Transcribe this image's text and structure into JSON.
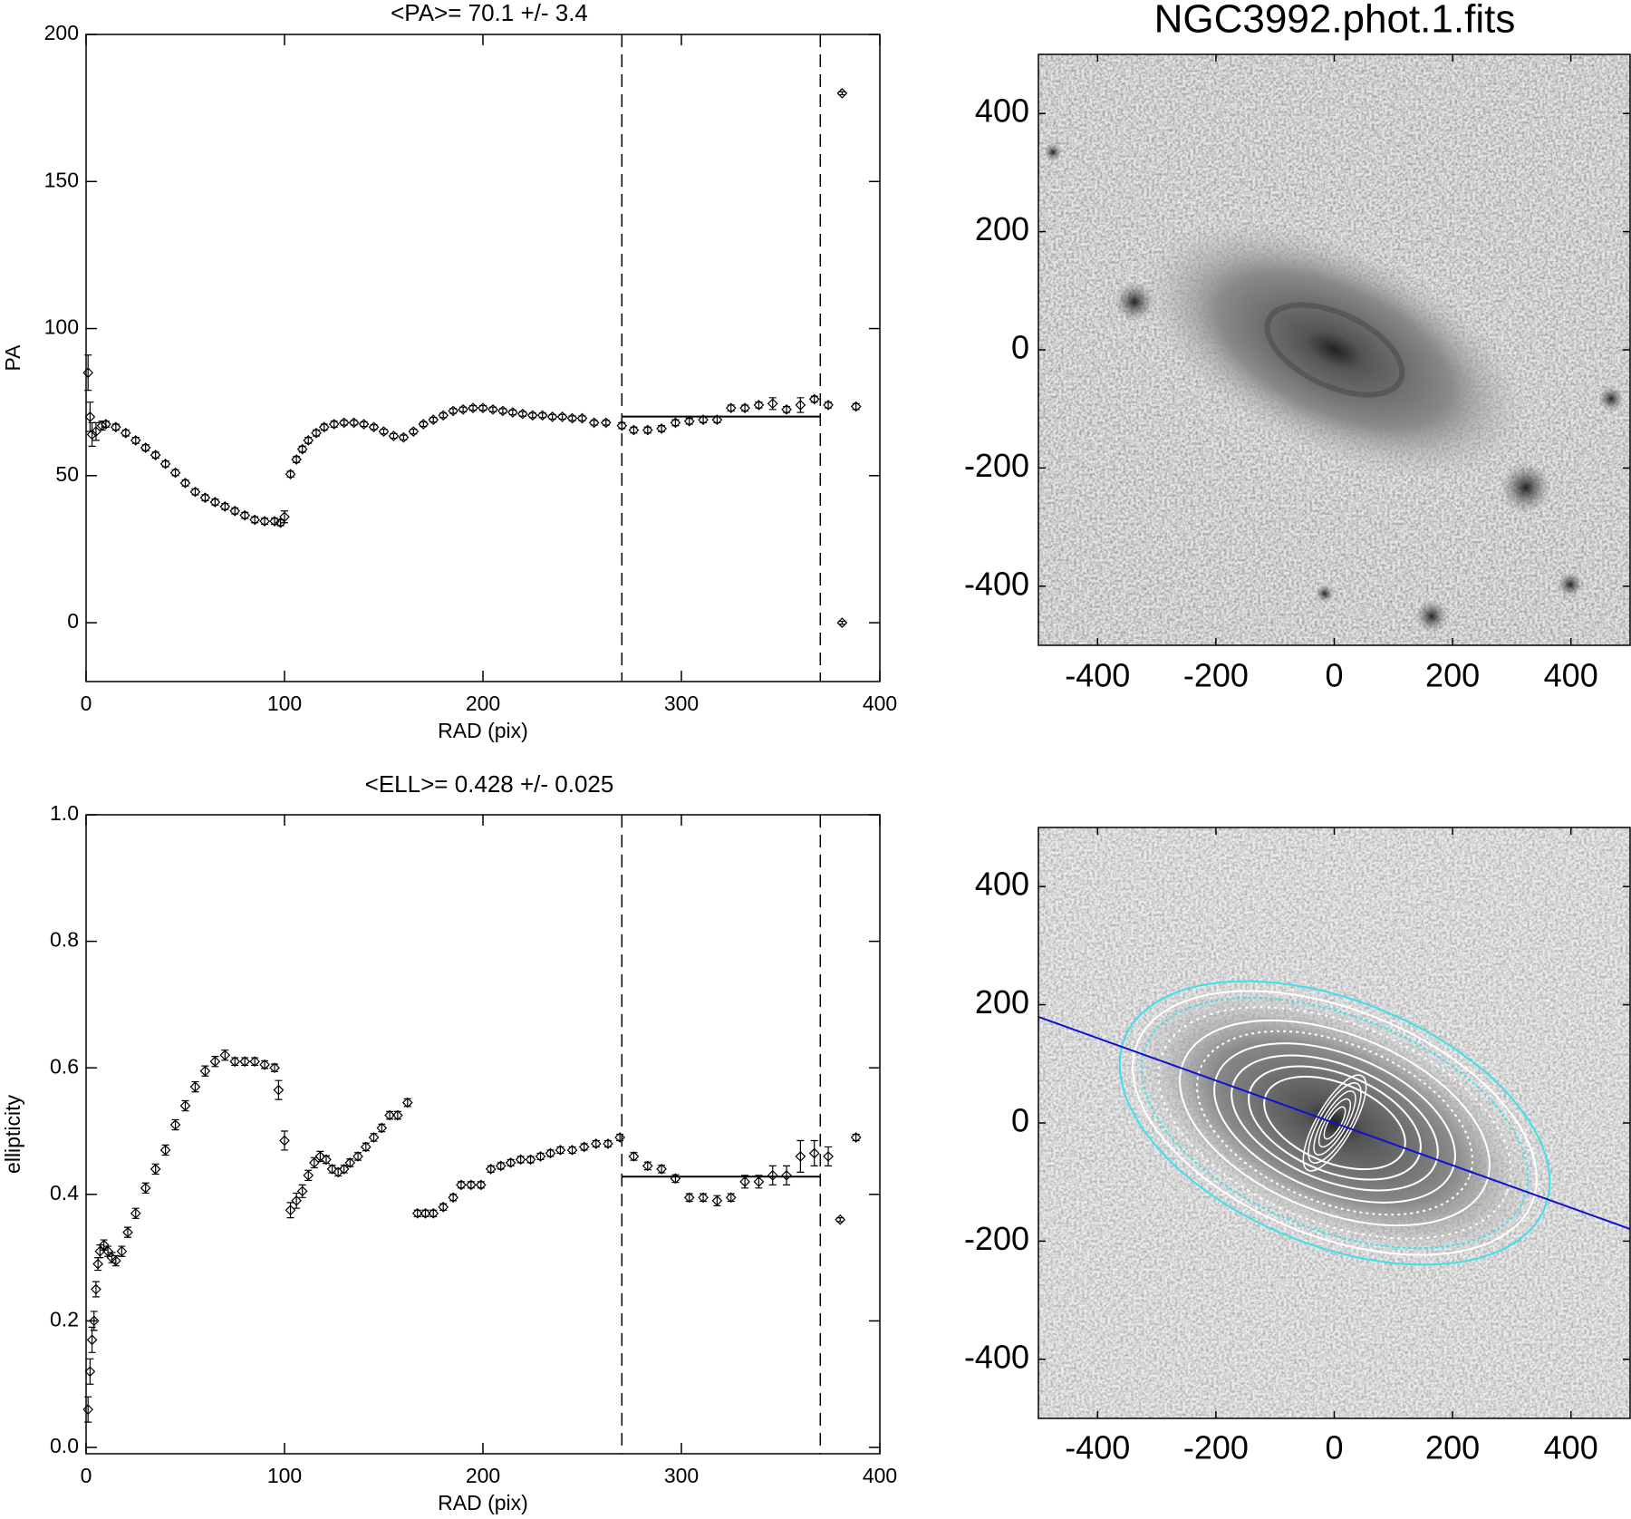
{
  "chart_data": [
    {
      "type": "scatter",
      "title": "<PA>=  70.1 +/-   3.4",
      "xlabel": "RAD (pix)",
      "ylabel": "PA",
      "xlim": [
        0,
        400
      ],
      "ylim": [
        -20,
        200
      ],
      "xticks": [
        0,
        100,
        200,
        300,
        400
      ],
      "yticks": [
        0,
        50,
        100,
        150,
        200
      ],
      "vlines": [
        270,
        370
      ],
      "mean_line": {
        "y": 70.1,
        "x": [
          270,
          370
        ]
      },
      "color": "#000000",
      "x": [
        1,
        2,
        3,
        5,
        8,
        10,
        15,
        20,
        25,
        30,
        35,
        40,
        45,
        50,
        55,
        60,
        65,
        70,
        75,
        80,
        85,
        90,
        95,
        98,
        100,
        103,
        106,
        109,
        112,
        116,
        120,
        125,
        130,
        135,
        140,
        145,
        150,
        155,
        160,
        165,
        170,
        175,
        180,
        185,
        190,
        195,
        200,
        205,
        210,
        215,
        220,
        225,
        230,
        235,
        240,
        245,
        250,
        256,
        262,
        270,
        276,
        283,
        290,
        297,
        304,
        311,
        318,
        325,
        332,
        339,
        346,
        353,
        360,
        367,
        374,
        381,
        381,
        388
      ],
      "values": [
        85,
        70,
        64,
        65,
        67,
        67.5,
        66.5,
        64.5,
        62,
        59.5,
        57,
        54,
        51,
        47.5,
        44.5,
        42.5,
        41,
        39.5,
        38,
        36.5,
        35,
        34.5,
        34.5,
        34,
        36,
        50.5,
        55.5,
        59,
        62,
        64.5,
        66.5,
        67.5,
        68,
        68,
        67.5,
        66.5,
        65,
        63.5,
        63,
        65,
        67.5,
        69,
        70.5,
        72,
        72.5,
        73,
        73,
        72.5,
        72,
        71.5,
        71,
        70.5,
        70.5,
        70,
        70,
        69.5,
        69.5,
        68,
        68,
        67,
        65.5,
        65.5,
        66,
        68,
        68.5,
        69,
        69,
        73,
        73,
        74,
        74.5,
        72.5,
        74,
        76,
        74,
        180,
        0,
        73.5
      ],
      "errors": [
        6,
        5,
        4,
        3,
        1.5,
        1,
        1,
        1,
        1,
        1,
        1,
        1,
        1,
        1,
        1,
        1,
        1,
        1,
        1,
        1,
        1,
        1,
        1,
        1,
        2,
        1,
        1,
        1,
        1,
        1,
        1,
        1,
        0.8,
        0.8,
        0.8,
        0.8,
        0.8,
        0.8,
        0.8,
        0.8,
        0.8,
        0.8,
        0.8,
        0.8,
        0.8,
        0.8,
        0.8,
        0.8,
        0.8,
        0.8,
        0.8,
        0.8,
        0.8,
        0.8,
        0.8,
        0.8,
        0.8,
        0.8,
        0.8,
        1,
        1,
        1,
        1,
        1,
        1,
        1,
        1,
        1,
        1,
        1,
        2,
        1,
        2.5,
        1,
        1,
        0.5,
        0.5,
        1
      ]
    },
    {
      "type": "image",
      "title": "NGC3992.phot.1.fits",
      "xlim": [
        -500,
        500
      ],
      "ylim": [
        -500,
        500
      ],
      "xticks": [
        -400,
        -200,
        0,
        200,
        400
      ],
      "yticks": [
        -400,
        -200,
        0,
        200,
        400
      ]
    },
    {
      "type": "scatter",
      "title": "<ELL>= 0.428 +/-  0.025",
      "xlabel": "RAD (pix)",
      "ylabel": "ellipticity",
      "xlim": [
        0,
        400
      ],
      "ylim": [
        -0.01,
        1.0
      ],
      "xticks": [
        0,
        100,
        200,
        300,
        400
      ],
      "yticks": [
        {
          "value": 0,
          "label": "0.0"
        },
        0.2,
        0.4,
        0.6,
        0.8,
        {
          "value": 1,
          "label": "1.0"
        }
      ],
      "vlines": [
        270,
        370
      ],
      "mean_line": {
        "y": 0.428,
        "x": [
          270,
          370
        ]
      },
      "color": "#000000",
      "x": [
        1,
        2,
        3,
        4,
        5,
        6,
        7,
        9,
        11,
        13,
        15,
        18,
        21,
        25,
        30,
        35,
        40,
        45,
        50,
        55,
        60,
        65,
        70,
        75,
        80,
        85,
        90,
        95,
        97,
        100,
        103,
        106,
        109,
        112,
        115,
        118,
        121,
        124,
        127,
        130,
        133,
        137,
        141,
        145,
        149,
        153,
        157,
        162,
        167,
        171,
        175,
        180,
        185,
        189,
        194,
        199,
        204,
        209,
        214,
        219,
        224,
        229,
        234,
        239,
        245,
        251,
        257,
        263,
        269,
        276,
        283,
        290,
        297,
        304,
        311,
        318,
        325,
        332,
        339,
        346,
        353,
        360,
        367,
        374,
        380,
        388
      ],
      "values": [
        0.06,
        0.12,
        0.17,
        0.2,
        0.25,
        0.29,
        0.31,
        0.32,
        0.31,
        0.3,
        0.295,
        0.31,
        0.34,
        0.37,
        0.41,
        0.44,
        0.47,
        0.51,
        0.54,
        0.57,
        0.595,
        0.61,
        0.62,
        0.61,
        0.61,
        0.61,
        0.605,
        0.6,
        0.565,
        0.485,
        0.375,
        0.39,
        0.405,
        0.43,
        0.45,
        0.46,
        0.455,
        0.44,
        0.435,
        0.44,
        0.45,
        0.46,
        0.475,
        0.49,
        0.505,
        0.525,
        0.525,
        0.545,
        0.37,
        0.37,
        0.37,
        0.38,
        0.395,
        0.415,
        0.415,
        0.415,
        0.44,
        0.445,
        0.45,
        0.455,
        0.455,
        0.46,
        0.465,
        0.47,
        0.47,
        0.475,
        0.48,
        0.48,
        0.49,
        0.46,
        0.445,
        0.44,
        0.425,
        0.395,
        0.395,
        0.39,
        0.395,
        0.42,
        0.42,
        0.43,
        0.43,
        0.46,
        0.465,
        0.46,
        0.36,
        0.49
      ],
      "errors": [
        0.02,
        0.02,
        0.02,
        0.015,
        0.012,
        0.01,
        0.01,
        0.008,
        0.008,
        0.008,
        0.008,
        0.008,
        0.008,
        0.008,
        0.008,
        0.008,
        0.008,
        0.008,
        0.008,
        0.008,
        0.008,
        0.008,
        0.008,
        0.006,
        0.006,
        0.006,
        0.006,
        0.006,
        0.015,
        0.015,
        0.012,
        0.012,
        0.01,
        0.008,
        0.008,
        0.008,
        0.006,
        0.006,
        0.006,
        0.006,
        0.006,
        0.006,
        0.006,
        0.006,
        0.006,
        0.006,
        0.006,
        0.006,
        0.005,
        0.005,
        0.005,
        0.005,
        0.005,
        0.005,
        0.005,
        0.005,
        0.005,
        0.005,
        0.005,
        0.005,
        0.005,
        0.005,
        0.005,
        0.005,
        0.005,
        0.005,
        0.005,
        0.005,
        0.005,
        0.006,
        0.006,
        0.006,
        0.006,
        0.006,
        0.006,
        0.008,
        0.006,
        0.01,
        0.01,
        0.015,
        0.015,
        0.025,
        0.02,
        0.015,
        0.003,
        0.005
      ]
    },
    {
      "type": "image",
      "xlim": [
        -500,
        500
      ],
      "ylim": [
        -500,
        500
      ],
      "xticks": [
        -400,
        -200,
        0,
        200,
        400
      ],
      "yticks": [
        -400,
        -200,
        0,
        200,
        400
      ]
    }
  ]
}
